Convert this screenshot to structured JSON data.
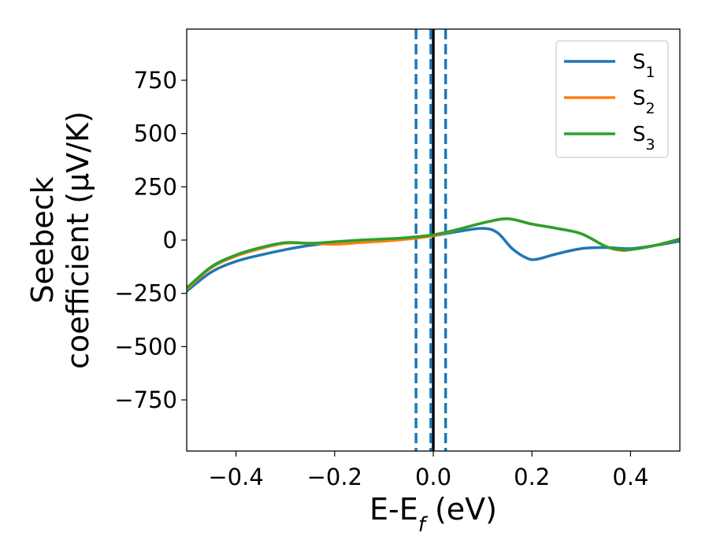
{
  "chart_data": {
    "type": "line",
    "title": "",
    "xlabel": "E-E",
    "xlabel_sub": "f",
    "xlabel_unit": " (eV)",
    "ylabel_line1": "Seebeck",
    "ylabel_line2": "coefficient  (μV/K)",
    "xlim": [
      -0.5,
      0.5
    ],
    "ylim": [
      -990,
      990
    ],
    "xticks": [
      -0.4,
      -0.2,
      0.0,
      0.2,
      0.4
    ],
    "xtick_labels": [
      "−0.4",
      "−0.2",
      "0.0",
      "0.2",
      "0.4"
    ],
    "yticks": [
      750,
      500,
      250,
      0,
      -250,
      -500,
      -750
    ],
    "ytick_labels": [
      "750",
      "500",
      "250",
      "0",
      "−250",
      "−500",
      "−750"
    ],
    "grid": false,
    "legend_position": "top-right",
    "vlines": [
      {
        "x": 0.0,
        "color": "#000000",
        "style": "solid"
      },
      {
        "x": -0.035,
        "color": "#1f77b4",
        "style": "dashed"
      },
      {
        "x": -0.005,
        "color": "#1f77b4",
        "style": "dashed"
      },
      {
        "x": 0.025,
        "color": "#1f77b4",
        "style": "dashed"
      }
    ],
    "series": [
      {
        "name": "S",
        "sub": "1",
        "color": "#1f77b4",
        "x": [
          -0.5,
          -0.45,
          -0.4,
          -0.35,
          -0.3,
          -0.25,
          -0.2,
          -0.15,
          -0.1,
          -0.05,
          0.0,
          0.05,
          0.1,
          0.13,
          0.16,
          0.19,
          0.21,
          0.25,
          0.3,
          0.35,
          0.4,
          0.45,
          0.5
        ],
        "y": [
          -240,
          -150,
          -100,
          -70,
          -45,
          -25,
          -12,
          -4,
          2,
          8,
          20,
          40,
          55,
          35,
          -40,
          -85,
          -90,
          -65,
          -40,
          -35,
          -40,
          -25,
          -5
        ]
      },
      {
        "name": "S",
        "sub": "2",
        "color": "#ff7f0e",
        "x": [
          -0.5,
          -0.45,
          -0.4,
          -0.35,
          -0.3,
          -0.25,
          -0.2,
          -0.15,
          -0.1,
          -0.05,
          0.0,
          0.05,
          0.1,
          0.15,
          0.2,
          0.25,
          0.3,
          0.35,
          0.38,
          0.4,
          0.45,
          0.5
        ],
        "y": [
          -230,
          -130,
          -75,
          -40,
          -15,
          -15,
          -20,
          -12,
          -5,
          5,
          20,
          50,
          80,
          100,
          75,
          55,
          30,
          -30,
          -48,
          -45,
          -25,
          5
        ]
      },
      {
        "name": "S",
        "sub": "3",
        "color": "#2ca02c",
        "x": [
          -0.5,
          -0.45,
          -0.4,
          -0.35,
          -0.3,
          -0.25,
          -0.2,
          -0.15,
          -0.1,
          -0.05,
          0.0,
          0.05,
          0.1,
          0.15,
          0.2,
          0.25,
          0.3,
          0.35,
          0.38,
          0.4,
          0.45,
          0.5
        ],
        "y": [
          -225,
          -125,
          -70,
          -35,
          -12,
          -15,
          -8,
          0,
          5,
          12,
          25,
          50,
          80,
          100,
          75,
          55,
          30,
          -30,
          -45,
          -45,
          -25,
          5
        ]
      }
    ]
  }
}
